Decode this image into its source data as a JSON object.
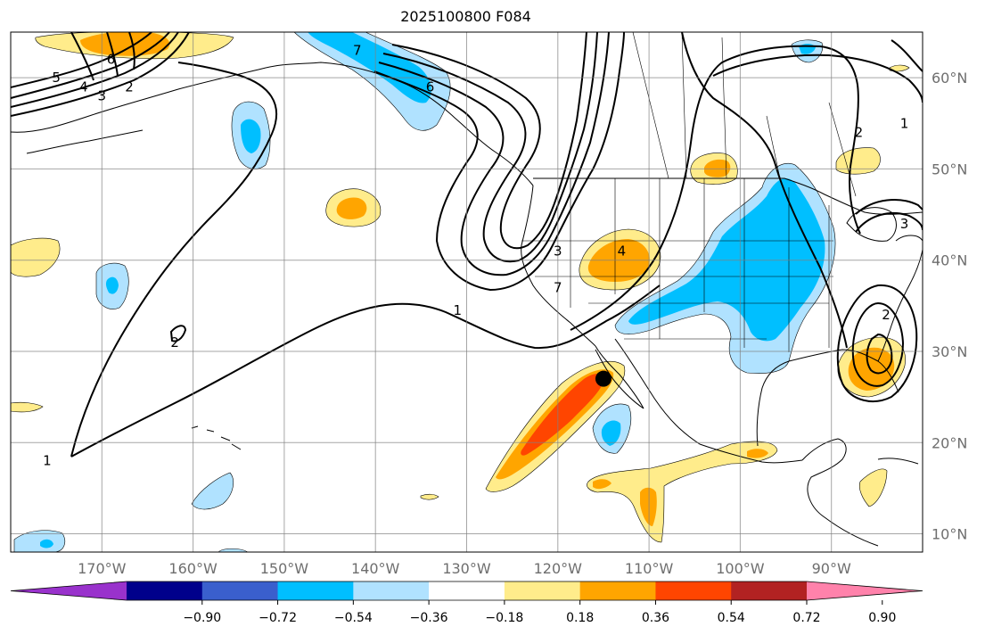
{
  "title": "2025100800 F084",
  "map": {
    "projection": "PlateCarree",
    "lon_range": [
      -180,
      -80
    ],
    "lat_range": [
      8,
      65
    ],
    "grid_on": true,
    "lon_ticks": [
      {
        "lon": -170,
        "label": "170°W"
      },
      {
        "lon": -160,
        "label": "160°W"
      },
      {
        "lon": -150,
        "label": "150°W"
      },
      {
        "lon": -140,
        "label": "140°W"
      },
      {
        "lon": -130,
        "label": "130°W"
      },
      {
        "lon": -120,
        "label": "120°W"
      },
      {
        "lon": -110,
        "label": "110°W"
      },
      {
        "lon": -100,
        "label": "100°W"
      },
      {
        "lon": -90,
        "label": "90°W"
      }
    ],
    "lat_ticks": [
      {
        "lat": 60,
        "label": "60°N"
      },
      {
        "lat": 50,
        "label": "50°N"
      },
      {
        "lat": 40,
        "label": "40°N"
      },
      {
        "lat": 30,
        "label": "30°N"
      },
      {
        "lat": 20,
        "label": "20°N"
      },
      {
        "lat": 10,
        "label": "10°N"
      }
    ],
    "marker": {
      "lon": -115,
      "lat": 27,
      "color": "#000000"
    },
    "contour_labels": [
      {
        "text": "1",
        "lon": -131,
        "lat": 34.5
      },
      {
        "text": "1",
        "lon": -176,
        "lat": 18
      },
      {
        "text": "1",
        "lon": -82,
        "lat": 55
      },
      {
        "text": "2",
        "lon": -162,
        "lat": 31
      },
      {
        "text": "2",
        "lon": -87,
        "lat": 54
      },
      {
        "text": "2",
        "lon": -167,
        "lat": 59
      },
      {
        "text": "2",
        "lon": -84,
        "lat": 34
      },
      {
        "text": "3",
        "lon": -170,
        "lat": 58
      },
      {
        "text": "3",
        "lon": -120,
        "lat": 41
      },
      {
        "text": "3",
        "lon": -82,
        "lat": 44
      },
      {
        "text": "4",
        "lon": -172,
        "lat": 59
      },
      {
        "text": "4",
        "lon": -113,
        "lat": 41
      },
      {
        "text": "5",
        "lon": -175,
        "lat": 60
      },
      {
        "text": "6",
        "lon": -169,
        "lat": 62
      },
      {
        "text": "6",
        "lon": -134,
        "lat": 59
      },
      {
        "text": "7",
        "lon": -142,
        "lat": 63
      },
      {
        "text": "7",
        "lon": -120,
        "lat": 37
      }
    ]
  },
  "colorbar": {
    "colors": [
      "#9932cc",
      "#00008b",
      "#3a5fcd",
      "#00bfff",
      "#b0e2ff",
      "#ffffff",
      "#ffec8b",
      "#ffa500",
      "#ff4500",
      "#b22222",
      "#ff82ab"
    ],
    "ticks": [
      "−0.90",
      "−0.72",
      "−0.54",
      "−0.36",
      "−0.18",
      "0.18",
      "0.36",
      "0.54",
      "0.72",
      "0.90"
    ]
  }
}
